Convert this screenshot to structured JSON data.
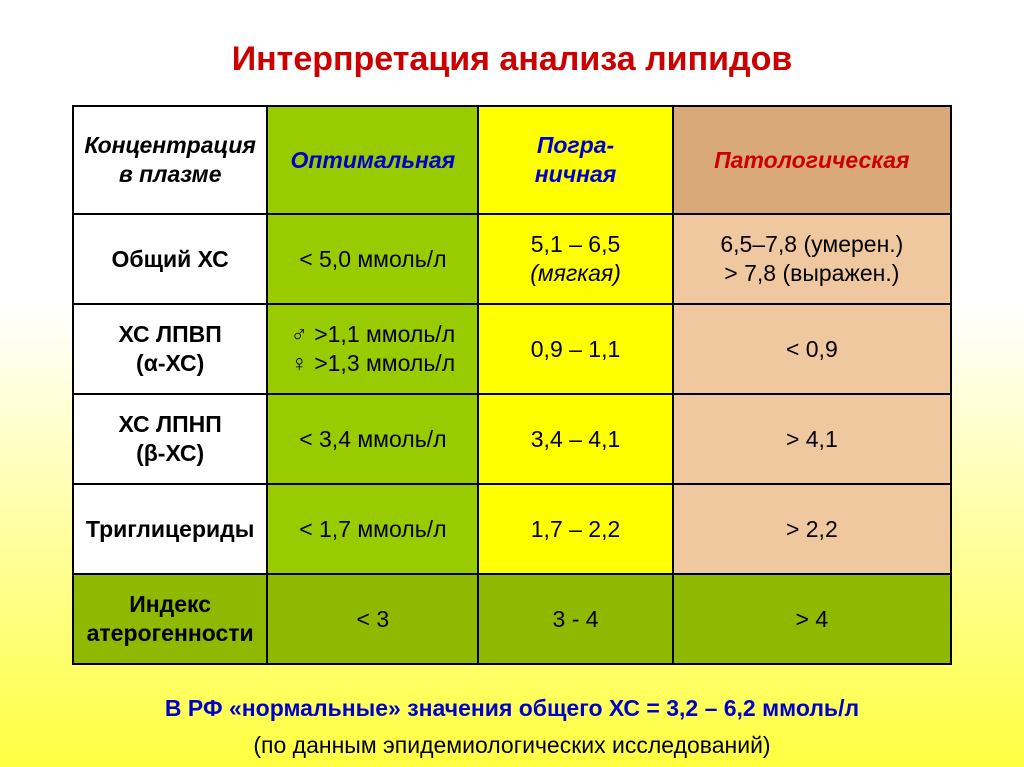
{
  "title": "Интерпретация анализа липидов",
  "colors": {
    "title": "#cc0000",
    "header_optimal_bg": "#99cc00",
    "header_borderline_bg": "#ffff00",
    "header_pathological_bg": "#d9a97a",
    "header_optimal_text": "#0000cc",
    "header_borderline_text": "#0000cc",
    "header_pathological_text": "#cc0000",
    "cell_optimal_bg": "#99cc00",
    "cell_borderline_bg": "#ffff00",
    "cell_pathological_bg": "#f0c8a0",
    "lastrow_bg": "#8fb800",
    "footnote_text": "#0000cc",
    "border": "#000000"
  },
  "headers": {
    "param": "Концентрация в плазме",
    "optimal": "Оптимальная",
    "borderline_l1": "Погра-",
    "borderline_l2": "ничная",
    "pathological": "Патологическая"
  },
  "rows": [
    {
      "param_l1": "Общий ХС",
      "param_l2": "",
      "optimal_l1": "< 5,0 ммоль/л",
      "optimal_l2": "",
      "borderline_l1": "5,1 – 6,5",
      "borderline_l2": "(мягкая)",
      "borderline_l2_italic": true,
      "path_l1": "6,5–7,8 (умерен.)",
      "path_l2": "> 7,8 (выражен.)"
    },
    {
      "param_l1": "ХС ЛПВП",
      "param_l2": "(α-ХС)",
      "optimal_l1": "♂ >1,1 ммоль/л",
      "optimal_l2": "♀ >1,3 ммоль/л",
      "borderline_l1": "0,9 – 1,1",
      "borderline_l2": "",
      "path_l1": "< 0,9",
      "path_l2": ""
    },
    {
      "param_l1": "ХС ЛПНП",
      "param_l2": "(β-ХС)",
      "optimal_l1": "< 3,4 ммоль/л",
      "optimal_l2": "",
      "borderline_l1": "3,4 – 4,1",
      "borderline_l2": "",
      "path_l1": "> 4,1",
      "path_l2": ""
    },
    {
      "param_l1": "Триглицериды",
      "param_l2": "",
      "optimal_l1": "< 1,7 ммоль/л",
      "optimal_l2": "",
      "borderline_l1": "1,7 – 2,2",
      "borderline_l2": "",
      "path_l1": "> 2,2",
      "path_l2": ""
    },
    {
      "param_l1": "Индекс",
      "param_l2": "атерогенности",
      "optimal_l1": "< 3",
      "optimal_l2": "",
      "borderline_l1": "3 - 4",
      "borderline_l2": "",
      "path_l1": "> 4",
      "path_l2": ""
    }
  ],
  "footnote1": "В РФ «нормальные» значения общего ХС = 3,2 – 6,2 ммоль/л",
  "footnote2": "(по данным эпидемиологических исследований)"
}
